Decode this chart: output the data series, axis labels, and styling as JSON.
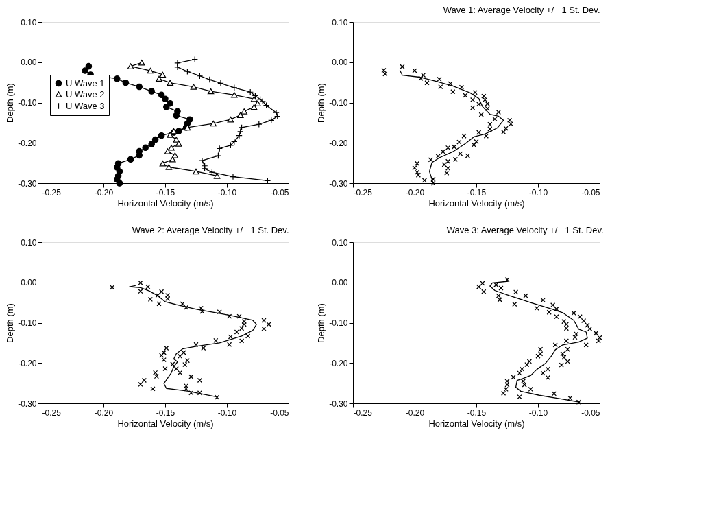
{
  "chart_data": [
    {
      "type": "line",
      "xlabel": "Horizontal Velocity (m/s)",
      "ylabel": "Depth (m)",
      "legend": "left",
      "xlim": [
        -0.25,
        -0.05
      ],
      "ylim": [
        -0.3,
        0.1
      ],
      "xticks": [
        {
          "value": -0.25,
          "label": "-0.25"
        },
        {
          "value": -0.2,
          "label": "-0.20"
        },
        {
          "value": -0.15,
          "label": "-0.15"
        },
        {
          "value": -0.1,
          "label": "-0.10"
        },
        {
          "value": -0.05,
          "label": "-0.05"
        }
      ],
      "yticks": [
        {
          "value": 0.1,
          "label": "0.10"
        },
        {
          "value": 0.0,
          "label": "0.00"
        },
        {
          "value": -0.1,
          "label": "-0.10"
        },
        {
          "value": -0.2,
          "label": "-0.20"
        },
        {
          "value": -0.3,
          "label": "-0.30"
        }
      ],
      "series": [
        {
          "name": "U Wave 1",
          "color": "#000000",
          "marker": "circle",
          "x": [
            -0.212,
            -0.215,
            -0.2105,
            -0.189,
            -0.182,
            -0.171,
            -0.161,
            -0.153,
            -0.15,
            -0.146,
            -0.149,
            -0.14,
            -0.141,
            -0.13,
            -0.132,
            -0.133,
            -0.139,
            -0.143,
            -0.153,
            -0.158,
            -0.161,
            -0.166,
            -0.171,
            -0.171,
            -0.178,
            -0.188,
            -0.189,
            -0.187,
            -0.188,
            -0.189,
            -0.187
          ],
          "values": [
            -0.01,
            -0.021,
            -0.031,
            -0.041,
            -0.051,
            -0.061,
            -0.072,
            -0.081,
            -0.091,
            -0.102,
            -0.111,
            -0.122,
            -0.132,
            -0.142,
            -0.152,
            -0.162,
            -0.171,
            -0.174,
            -0.182,
            -0.192,
            -0.203,
            -0.212,
            -0.221,
            -0.231,
            -0.241,
            -0.251,
            -0.261,
            -0.271,
            -0.282,
            -0.291,
            -0.3
          ]
        },
        {
          "name": "U Wave 2",
          "color": "#000000",
          "marker": "triangle",
          "x": [
            -0.169,
            -0.178,
            -0.162,
            -0.152,
            -0.155,
            -0.146,
            -0.127,
            -0.113,
            -0.094,
            -0.078,
            -0.075,
            -0.078,
            -0.086,
            -0.089,
            -0.097,
            -0.111,
            -0.132,
            -0.143,
            -0.146,
            -0.141,
            -0.139,
            -0.145,
            -0.148,
            -0.142,
            -0.144,
            -0.152,
            -0.147,
            -0.125,
            -0.108
          ],
          "values": [
            -0.001,
            -0.01,
            -0.021,
            -0.031,
            -0.041,
            -0.051,
            -0.061,
            -0.072,
            -0.081,
            -0.091,
            -0.102,
            -0.111,
            -0.122,
            -0.131,
            -0.142,
            -0.152,
            -0.162,
            -0.171,
            -0.18,
            -0.192,
            -0.202,
            -0.212,
            -0.221,
            -0.231,
            -0.241,
            -0.251,
            -0.26,
            -0.271,
            -0.282
          ]
        },
        {
          "name": "U Wave 3",
          "color": "#000000",
          "marker": "cross",
          "x": [
            -0.126,
            -0.14,
            -0.14,
            -0.132,
            -0.122,
            -0.114,
            -0.105,
            -0.094,
            -0.081,
            -0.077,
            -0.073,
            -0.071,
            -0.068,
            -0.06,
            -0.059,
            -0.064,
            -0.074,
            -0.088,
            -0.089,
            -0.09,
            -0.094,
            -0.097,
            -0.106,
            -0.107,
            -0.12,
            -0.118,
            -0.118,
            -0.112,
            -0.095,
            -0.067
          ],
          "values": [
            0.007,
            -0.002,
            -0.012,
            -0.023,
            -0.034,
            -0.043,
            -0.052,
            -0.063,
            -0.074,
            -0.083,
            -0.092,
            -0.097,
            -0.107,
            -0.125,
            -0.134,
            -0.144,
            -0.154,
            -0.162,
            -0.172,
            -0.182,
            -0.197,
            -0.206,
            -0.214,
            -0.232,
            -0.244,
            -0.257,
            -0.264,
            -0.273,
            -0.284,
            -0.294
          ]
        }
      ]
    },
    {
      "type": "line",
      "title": "Wave 1: Average Velocity +/− 1 St. Dev.",
      "xlabel": "Horizontal Velocity (m/s)",
      "ylabel": "Depth (m)",
      "xlim": [
        -0.25,
        -0.05
      ],
      "ylim": [
        -0.3,
        0.1
      ],
      "xticks": [
        {
          "value": -0.25,
          "label": "-0.25"
        },
        {
          "value": -0.2,
          "label": "-0.20"
        },
        {
          "value": -0.15,
          "label": "-0.15"
        },
        {
          "value": -0.1,
          "label": "-0.10"
        },
        {
          "value": -0.05,
          "label": "-0.05"
        }
      ],
      "yticks": [
        {
          "value": 0.1,
          "label": "0.10"
        },
        {
          "value": 0.0,
          "label": "0.00"
        },
        {
          "value": -0.1,
          "label": "-0.10"
        },
        {
          "value": -0.2,
          "label": "-0.20"
        },
        {
          "value": -0.3,
          "label": "-0.30"
        }
      ],
      "series": [
        {
          "color": "#000000",
          "x": [
            -0.212,
            -0.21,
            -0.196,
            -0.184,
            -0.169,
            -0.155,
            -0.148,
            -0.145,
            -0.139,
            -0.132,
            -0.128,
            -0.133,
            -0.143,
            -0.152,
            -0.159,
            -0.169,
            -0.18,
            -0.186,
            -0.188,
            -0.186,
            -0.185
          ],
          "values": [
            -0.02,
            -0.032,
            -0.037,
            -0.046,
            -0.059,
            -0.076,
            -0.09,
            -0.11,
            -0.129,
            -0.134,
            -0.144,
            -0.163,
            -0.178,
            -0.185,
            -0.202,
            -0.222,
            -0.237,
            -0.249,
            -0.271,
            -0.29,
            -0.3
          ]
        },
        {
          "type": "scatter",
          "color": "#000000",
          "marker": "cross",
          "x": [
            -0.225,
            -0.224,
            -0.21,
            -0.2,
            -0.193,
            -0.195,
            -0.19,
            -0.18,
            -0.179,
            -0.171,
            -0.169,
            -0.162,
            -0.159,
            -0.151,
            -0.153,
            -0.144,
            -0.153,
            -0.148,
            -0.143,
            -0.141,
            -0.141,
            -0.146,
            -0.132,
            -0.135,
            -0.123,
            -0.122,
            -0.126,
            -0.128,
            -0.139,
            -0.139,
            -0.142,
            -0.148,
            -0.16,
            -0.164,
            -0.168,
            -0.173,
            -0.177,
            -0.181,
            -0.187,
            -0.167,
            -0.163,
            -0.157,
            -0.15,
            -0.152,
            -0.176,
            -0.173,
            -0.173,
            -0.174,
            -0.198,
            -0.2,
            -0.198,
            -0.197,
            -0.192,
            -0.185,
            -0.185
          ],
          "values": [
            -0.02,
            -0.029,
            -0.011,
            -0.021,
            -0.032,
            -0.04,
            -0.051,
            -0.042,
            -0.061,
            -0.053,
            -0.073,
            -0.062,
            -0.082,
            -0.075,
            -0.093,
            -0.084,
            -0.113,
            -0.104,
            -0.093,
            -0.103,
            -0.115,
            -0.13,
            -0.124,
            -0.141,
            -0.144,
            -0.153,
            -0.164,
            -0.173,
            -0.154,
            -0.166,
            -0.183,
            -0.174,
            -0.183,
            -0.198,
            -0.21,
            -0.212,
            -0.222,
            -0.233,
            -0.242,
            -0.241,
            -0.227,
            -0.232,
            -0.197,
            -0.205,
            -0.254,
            -0.246,
            -0.263,
            -0.275,
            -0.251,
            -0.262,
            -0.273,
            -0.28,
            -0.293,
            -0.29,
            -0.3
          ]
        }
      ]
    },
    {
      "type": "line",
      "title": "Wave 2: Average Velocity +/− 1 St. Dev.",
      "xlabel": "Horizontal Velocity (m/s)",
      "ylabel": "Depth (m)",
      "xlim": [
        -0.25,
        -0.05
      ],
      "ylim": [
        -0.3,
        0.1
      ],
      "xticks": [
        {
          "value": -0.25,
          "label": "-0.25"
        },
        {
          "value": -0.2,
          "label": "-0.20"
        },
        {
          "value": -0.15,
          "label": "-0.15"
        },
        {
          "value": -0.1,
          "label": "-0.10"
        },
        {
          "value": -0.05,
          "label": "-0.05"
        }
      ],
      "yticks": [
        {
          "value": 0.1,
          "label": "0.10"
        },
        {
          "value": 0.0,
          "label": "0.00"
        },
        {
          "value": -0.1,
          "label": "-0.10"
        },
        {
          "value": -0.2,
          "label": "-0.20"
        },
        {
          "value": -0.3,
          "label": "-0.30"
        }
      ],
      "series": [
        {
          "color": "#000000",
          "x": [
            -0.174,
            -0.179,
            -0.17,
            -0.163,
            -0.156,
            -0.15,
            -0.141,
            -0.124,
            -0.109,
            -0.097,
            -0.086,
            -0.079,
            -0.076,
            -0.079,
            -0.088,
            -0.106,
            -0.124,
            -0.136,
            -0.141,
            -0.143,
            -0.14,
            -0.143,
            -0.145,
            -0.151,
            -0.149,
            -0.131,
            -0.118,
            -0.108
          ],
          "values": [
            -0.008,
            -0.011,
            -0.013,
            -0.021,
            -0.033,
            -0.048,
            -0.055,
            -0.067,
            -0.075,
            -0.082,
            -0.089,
            -0.094,
            -0.104,
            -0.119,
            -0.133,
            -0.15,
            -0.158,
            -0.165,
            -0.177,
            -0.19,
            -0.197,
            -0.209,
            -0.224,
            -0.251,
            -0.263,
            -0.27,
            -0.278,
            -0.284
          ]
        },
        {
          "type": "scatter",
          "color": "#000000",
          "marker": "cross",
          "x": [
            -0.193,
            -0.17,
            -0.164,
            -0.17,
            -0.162,
            -0.153,
            -0.156,
            -0.148,
            -0.148,
            -0.155,
            -0.136,
            -0.133,
            -0.121,
            -0.12,
            -0.106,
            -0.098,
            -0.09,
            -0.086,
            -0.086,
            -0.088,
            -0.07,
            -0.066,
            -0.07,
            -0.092,
            -0.097,
            -0.083,
            -0.088,
            -0.109,
            -0.098,
            -0.125,
            -0.119,
            -0.149,
            -0.151,
            -0.153,
            -0.135,
            -0.138,
            -0.151,
            -0.132,
            -0.134,
            -0.144,
            -0.141,
            -0.15,
            -0.138,
            -0.158,
            -0.157,
            -0.129,
            -0.122,
            -0.167,
            -0.17,
            -0.16,
            -0.133,
            -0.133,
            -0.129,
            -0.122,
            -0.108
          ],
          "values": [
            -0.012,
            -0.001,
            -0.011,
            -0.022,
            -0.042,
            -0.023,
            -0.032,
            -0.032,
            -0.04,
            -0.053,
            -0.053,
            -0.062,
            -0.064,
            -0.072,
            -0.073,
            -0.084,
            -0.084,
            -0.097,
            -0.104,
            -0.114,
            -0.094,
            -0.104,
            -0.115,
            -0.123,
            -0.135,
            -0.133,
            -0.145,
            -0.144,
            -0.154,
            -0.154,
            -0.163,
            -0.163,
            -0.174,
            -0.181,
            -0.174,
            -0.183,
            -0.192,
            -0.194,
            -0.204,
            -0.203,
            -0.214,
            -0.214,
            -0.224,
            -0.224,
            -0.233,
            -0.234,
            -0.243,
            -0.243,
            -0.253,
            -0.264,
            -0.257,
            -0.264,
            -0.274,
            -0.274,
            -0.285
          ]
        }
      ]
    },
    {
      "type": "line",
      "title": "Wave 3: Average Velocity +/− 1 St. Dev.",
      "xlabel": "Horizontal Velocity (m/s)",
      "ylabel": "Depth (m)",
      "xlim": [
        -0.25,
        -0.05
      ],
      "ylim": [
        -0.3,
        0.1
      ],
      "xticks": [
        {
          "value": -0.25,
          "label": "-0.25"
        },
        {
          "value": -0.2,
          "label": "-0.20"
        },
        {
          "value": -0.15,
          "label": "-0.15"
        },
        {
          "value": -0.1,
          "label": "-0.10"
        },
        {
          "value": -0.05,
          "label": "-0.05"
        }
      ],
      "yticks": [
        {
          "value": 0.1,
          "label": "0.10"
        },
        {
          "value": 0.0,
          "label": "0.00"
        },
        {
          "value": -0.1,
          "label": "-0.10"
        },
        {
          "value": -0.2,
          "label": "-0.20"
        },
        {
          "value": -0.3,
          "label": "-0.30"
        }
      ],
      "series": [
        {
          "color": "#000000",
          "x": [
            -0.124,
            -0.137,
            -0.139,
            -0.135,
            -0.123,
            -0.106,
            -0.09,
            -0.08,
            -0.071,
            -0.067,
            -0.061,
            -0.06,
            -0.067,
            -0.08,
            -0.086,
            -0.089,
            -0.094,
            -0.101,
            -0.106,
            -0.112,
            -0.117,
            -0.118,
            -0.114,
            -0.099,
            -0.081,
            -0.066
          ],
          "values": [
            0.003,
            -0.001,
            -0.009,
            -0.02,
            -0.033,
            -0.05,
            -0.065,
            -0.075,
            -0.094,
            -0.116,
            -0.123,
            -0.138,
            -0.148,
            -0.155,
            -0.167,
            -0.182,
            -0.201,
            -0.216,
            -0.231,
            -0.238,
            -0.243,
            -0.26,
            -0.27,
            -0.28,
            -0.289,
            -0.297
          ]
        },
        {
          "type": "scatter",
          "color": "#000000",
          "marker": "cross",
          "x": [
            -0.125,
            -0.145,
            -0.148,
            -0.144,
            -0.134,
            -0.13,
            -0.132,
            -0.131,
            -0.118,
            -0.119,
            -0.11,
            -0.096,
            -0.101,
            -0.088,
            -0.085,
            -0.091,
            -0.085,
            -0.079,
            -0.077,
            -0.077,
            -0.071,
            -0.066,
            -0.063,
            -0.06,
            -0.058,
            -0.053,
            -0.05,
            -0.051,
            -0.069,
            -0.07,
            -0.061,
            -0.077,
            -0.086,
            -0.098,
            -0.098,
            -0.1,
            -0.076,
            -0.08,
            -0.079,
            -0.076,
            -0.081,
            -0.107,
            -0.109,
            -0.113,
            -0.115,
            -0.12,
            -0.092,
            -0.096,
            -0.092,
            -0.125,
            -0.125,
            -0.126,
            -0.128,
            -0.112,
            -0.111,
            -0.106,
            -0.115,
            -0.087,
            -0.074,
            -0.067
          ],
          "values": [
            0.007,
            -0.002,
            -0.011,
            -0.023,
            -0.006,
            -0.014,
            -0.033,
            -0.043,
            -0.024,
            -0.054,
            -0.033,
            -0.044,
            -0.064,
            -0.056,
            -0.066,
            -0.074,
            -0.085,
            -0.097,
            -0.104,
            -0.114,
            -0.076,
            -0.085,
            -0.095,
            -0.106,
            -0.115,
            -0.126,
            -0.137,
            -0.145,
            -0.128,
            -0.136,
            -0.155,
            -0.145,
            -0.155,
            -0.166,
            -0.177,
            -0.183,
            -0.166,
            -0.177,
            -0.186,
            -0.196,
            -0.205,
            -0.196,
            -0.204,
            -0.215,
            -0.225,
            -0.235,
            -0.215,
            -0.225,
            -0.236,
            -0.245,
            -0.254,
            -0.265,
            -0.275,
            -0.245,
            -0.254,
            -0.265,
            -0.284,
            -0.276,
            -0.287,
            -0.297
          ]
        }
      ]
    }
  ]
}
